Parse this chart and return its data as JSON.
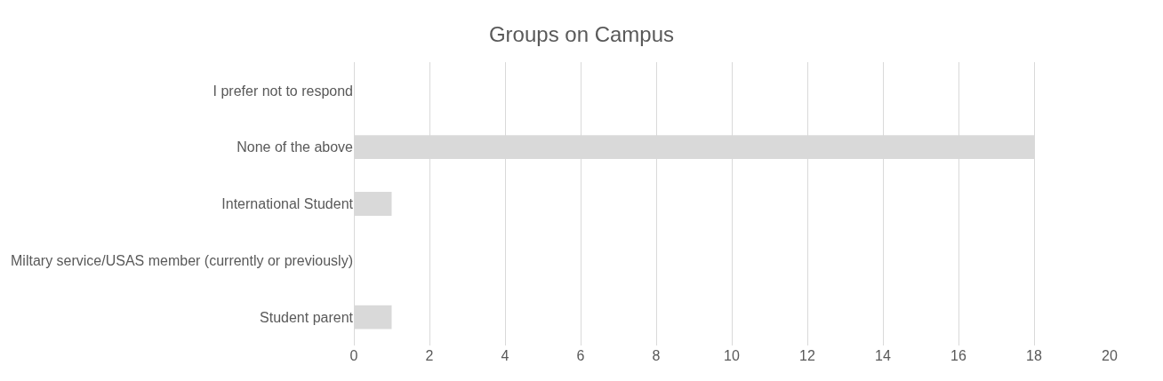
{
  "chart_data": {
    "type": "bar",
    "title": "Groups on Campus",
    "orientation": "horizontal",
    "categories": [
      "I prefer not to respond",
      "None of the above",
      "International Student",
      "Miltary service/USAS member (currently or previously)",
      "Student parent"
    ],
    "values": [
      0,
      18,
      1,
      0,
      1
    ],
    "color": "#d9d9d9",
    "xlim": [
      0,
      20
    ],
    "xticks": [
      0,
      2,
      4,
      6,
      8,
      10,
      12,
      14,
      16,
      18,
      20
    ],
    "grid": "x"
  }
}
